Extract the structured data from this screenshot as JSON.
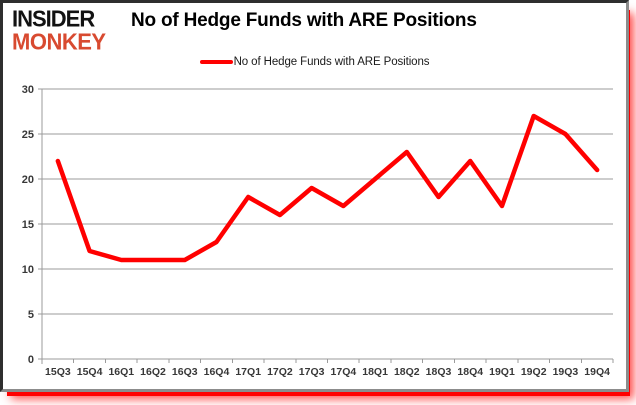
{
  "logo": {
    "line1": "INSIDER",
    "line2": "MONKEY"
  },
  "header": {
    "title": "No of Hedge Funds with ARE Positions"
  },
  "legend": {
    "label": "No of Hedge Funds with ARE Positions",
    "swatch_color": "#ff0000"
  },
  "colors": {
    "accent_red": "#ff0000",
    "logo_red": "#d84a30",
    "grid": "#9b9b9b",
    "axis_text": "#383838",
    "frame_border": "#8c8c8c",
    "shadow_red": "#ff0000"
  },
  "chart_data": {
    "type": "line",
    "title": "No of Hedge Funds with ARE Positions",
    "categories": [
      "15Q3",
      "15Q4",
      "16Q1",
      "16Q2",
      "16Q3",
      "16Q4",
      "17Q1",
      "17Q2",
      "17Q3",
      "17Q4",
      "18Q1",
      "18Q2",
      "18Q3",
      "18Q4",
      "19Q1",
      "19Q2",
      "19Q3",
      "19Q4"
    ],
    "series": [
      {
        "name": "No of Hedge Funds with ARE Positions",
        "values": [
          22,
          12,
          11,
          11,
          11,
          13,
          18,
          16,
          19,
          17,
          20,
          23,
          18,
          22,
          17,
          27,
          25,
          21
        ]
      }
    ],
    "xlabel": "",
    "ylabel": "",
    "ylim": [
      0,
      30
    ],
    "yticks": [
      0,
      5,
      10,
      15,
      20,
      25,
      30
    ],
    "line_color": "#ff0000",
    "grid": true,
    "legend_position": "top-center"
  }
}
